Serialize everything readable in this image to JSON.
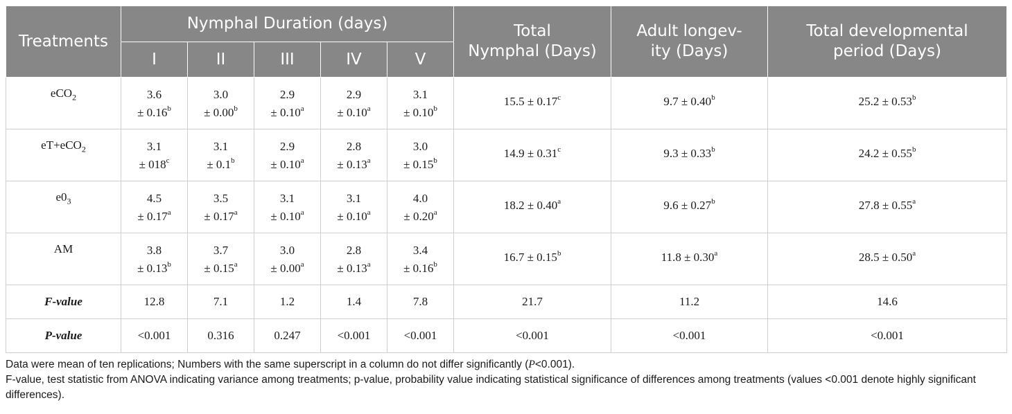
{
  "table": {
    "header": {
      "treatments": "Treatments",
      "group_label": "Nymphal Duration (days)",
      "instars": [
        "I",
        "II",
        "III",
        "IV",
        "V"
      ],
      "total_nymphal": "Total Nymphal (Days)",
      "adult_longevity": "Adult longev-ity (Days)",
      "adult_longevity_line1": "Adult longev-",
      "adult_longevity_line2": "ity (Days)",
      "total_dev_line1": "Total developmental",
      "total_dev_line2": "period (Days)",
      "total_nymphal_line1": "Total",
      "total_nymphal_line2": "Nymphal (Days)"
    },
    "rows": [
      {
        "name": "eCO",
        "name_sub": "2",
        "name_prefix": "",
        "instars": [
          {
            "v": "3.6",
            "sd": "± 0.16",
            "sup": "b"
          },
          {
            "v": "3.0",
            "sd": "± 0.00",
            "sup": "b"
          },
          {
            "v": "2.9",
            "sd": "± 0.10",
            "sup": "a"
          },
          {
            "v": "2.9",
            "sd": "± 0.10",
            "sup": "a"
          },
          {
            "v": "3.1",
            "sd": "± 0.10",
            "sup": "b"
          }
        ],
        "total_nymphal": {
          "v": "15.5 ± 0.17",
          "sup": "c"
        },
        "adult_longevity": {
          "v": "9.7 ± 0.40",
          "sup": "b"
        },
        "total_dev": {
          "v": "25.2 ± 0.53",
          "sup": "b"
        }
      },
      {
        "name": "eT+eCO",
        "name_sub": "2",
        "instars": [
          {
            "v": "3.1",
            "sd": "± 018",
            "sup": "c"
          },
          {
            "v": "3.1",
            "sd": "± 0.1",
            "sup": "b"
          },
          {
            "v": "2.9",
            "sd": "± 0.10",
            "sup": "a"
          },
          {
            "v": "2.8",
            "sd": "± 0.13",
            "sup": "a"
          },
          {
            "v": "3.0",
            "sd": "± 0.15",
            "sup": "b"
          }
        ],
        "total_nymphal": {
          "v": "14.9 ± 0.31",
          "sup": "c"
        },
        "adult_longevity": {
          "v": "9.3 ± 0.33",
          "sup": "b"
        },
        "total_dev": {
          "v": "24.2 ± 0.55",
          "sup": "b"
        }
      },
      {
        "name": "e0",
        "name_sub": "3",
        "instars": [
          {
            "v": "4.5",
            "sd": "± 0.17",
            "sup": "a"
          },
          {
            "v": "3.5",
            "sd": "± 0.17",
            "sup": "a"
          },
          {
            "v": "3.1",
            "sd": "± 0.10",
            "sup": "a"
          },
          {
            "v": "3.1",
            "sd": "± 0.10",
            "sup": "a"
          },
          {
            "v": "4.0",
            "sd": "± 0.20",
            "sup": "a"
          }
        ],
        "total_nymphal": {
          "v": "18.2 ± 0.40",
          "sup": "a"
        },
        "adult_longevity": {
          "v": "9.6 ± 0.27",
          "sup": "b"
        },
        "total_dev": {
          "v": "27.8 ± 0.55",
          "sup": "a"
        }
      },
      {
        "name": "AM",
        "name_sub": "",
        "instars": [
          {
            "v": "3.8",
            "sd": "± 0.13",
            "sup": "b"
          },
          {
            "v": "3.7",
            "sd": "± 0.15",
            "sup": "a"
          },
          {
            "v": "3.0",
            "sd": "± 0.00",
            "sup": "a"
          },
          {
            "v": "2.8",
            "sd": "± 0.13",
            "sup": "a"
          },
          {
            "v": "3.4",
            "sd": "± 0.16",
            "sup": "b"
          }
        ],
        "total_nymphal": {
          "v": "16.7 ± 0.15",
          "sup": "b"
        },
        "adult_longevity": {
          "v": "11.8 ± 0.30",
          "sup": "a"
        },
        "total_dev": {
          "v": "28.5 ± 0.50",
          "sup": "a"
        }
      }
    ],
    "stats": [
      {
        "label": "F-value",
        "values": [
          "12.8",
          "7.1",
          "1.2",
          "1.4",
          "7.8",
          "21.7",
          "11.2",
          "14.6"
        ]
      },
      {
        "label": "P-value",
        "values": [
          "<0.001",
          "0.316",
          "0.247",
          "<0.001",
          "<0.001",
          "<0.001",
          "<0.001",
          "<0.001"
        ]
      }
    ]
  },
  "notes": {
    "line1_a": "Data were mean of ten replications; Numbers with the same superscript in a column do not differ significantly (",
    "line1_p": "P",
    "line1_b": "<0.001).",
    "line2": "F-value, test statistic from ANOVA indicating variance among treatments; p-value, probability value indicating statistical significance of differences among treatments (values <0.001 denote highly significant differences)."
  },
  "colors": {
    "header_bg": "#878787",
    "header_text": "#ffffff",
    "grid": "#cfcfcf"
  }
}
